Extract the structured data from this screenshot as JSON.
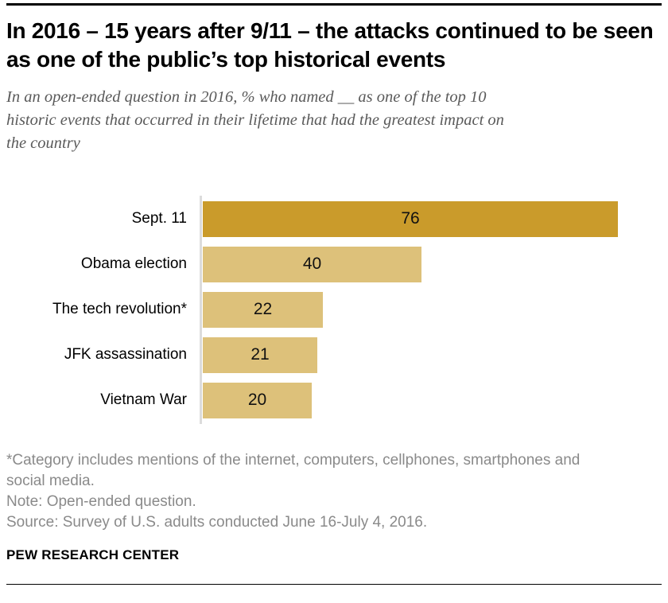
{
  "header": {
    "title": "In 2016 – 15 years after 9/11 – the attacks continued to be seen as one of the public’s top historical events",
    "subtitle_lines": [
      "In an open-ended question in 2016, % who named __ as one of the top 10",
      "historic events that occurred in their lifetime that had the greatest impact on",
      "the country"
    ]
  },
  "chart_data": {
    "type": "bar",
    "orientation": "horizontal",
    "categories": [
      "Sept. 11",
      "Obama election",
      "The tech revolution*",
      "JFK assassination",
      "Vietnam War"
    ],
    "values": [
      76,
      40,
      22,
      21,
      20
    ],
    "value_label_position": "inside-center",
    "highlight_index": 0,
    "highlight_color": "#CA9B2B",
    "base_color": "#DDC17A",
    "axis_line_color": "#DCDCDC",
    "xlim": [
      0,
      85
    ],
    "grid": false,
    "legend": false,
    "title": "In 2016 – 15 years after 9/11 – the attacks continued to be seen as one of the public’s top historical events",
    "xlabel": "",
    "ylabel": ""
  },
  "footer": {
    "asterisk_note_lines": [
      "*Category includes mentions of the internet, computers, cellphones, smartphones and",
      "social media."
    ],
    "note": "Note: Open-ended question.",
    "source": "Source: Survey of U.S. adults conducted June 16-July 4, 2016.",
    "brand": "PEW RESEARCH CENTER"
  }
}
